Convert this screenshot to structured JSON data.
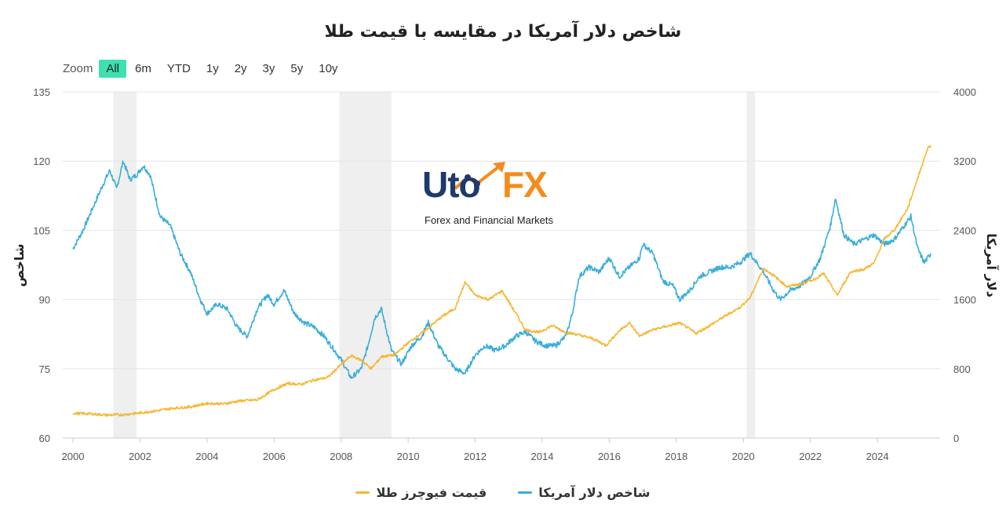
{
  "title": "شاخص دلار آمریکا در مقایسه با قیمت طلا",
  "range_selector": {
    "zoom_label": "Zoom",
    "buttons": [
      "All",
      "6m",
      "YTD",
      "1y",
      "2y",
      "3y",
      "5y",
      "10y"
    ],
    "active": "All"
  },
  "logo": {
    "part1": "Uto",
    "part2": "FX",
    "subtitle": "Forex and Financial Markets"
  },
  "colors": {
    "dxy": "#3aaed8",
    "gold": "#f5b731",
    "grid": "#e6e6e6",
    "recession": "#efefef"
  },
  "chart_data": {
    "type": "line",
    "title": "شاخص دلار آمریکا در مقایسه با قیمت طلا",
    "xlabel": "",
    "x_ticks": [
      "2000",
      "2002",
      "2004",
      "2006",
      "2008",
      "2010",
      "2012",
      "2014",
      "2016",
      "2018",
      "2020",
      "2022",
      "2024"
    ],
    "left_axis": {
      "label": "شاخص",
      "range": [
        60,
        135
      ],
      "ticks": [
        "60",
        "75",
        "90",
        "105",
        "120",
        "135"
      ]
    },
    "right_axis": {
      "label": "دلار آمریکا",
      "range": [
        0,
        4000
      ],
      "ticks": [
        "0",
        "800",
        "1600",
        "2400",
        "3200",
        "4000"
      ]
    },
    "shaded_periods": [
      [
        2001.2,
        2001.9
      ],
      [
        2007.95,
        2009.5
      ],
      [
        2020.1,
        2020.35
      ]
    ],
    "grid": true,
    "legend_position": "bottom",
    "series": [
      {
        "name": "شاخص دلار آمریکا",
        "axis": "left",
        "x": [
          2000.0,
          2000.3,
          2000.6,
          2000.9,
          2001.1,
          2001.3,
          2001.5,
          2001.7,
          2001.9,
          2002.1,
          2002.3,
          2002.6,
          2002.9,
          2003.2,
          2003.5,
          2003.8,
          2004.0,
          2004.3,
          2004.6,
          2004.9,
          2005.2,
          2005.5,
          2005.8,
          2006.0,
          2006.3,
          2006.6,
          2006.9,
          2007.2,
          2007.5,
          2007.8,
          2008.0,
          2008.3,
          2008.6,
          2008.8,
          2009.0,
          2009.2,
          2009.5,
          2009.8,
          2010.1,
          2010.4,
          2010.6,
          2010.9,
          2011.2,
          2011.4,
          2011.7,
          2012.0,
          2012.3,
          2012.6,
          2012.9,
          2013.2,
          2013.5,
          2013.8,
          2014.1,
          2014.4,
          2014.7,
          2014.9,
          2015.1,
          2015.4,
          2015.7,
          2016.0,
          2016.3,
          2016.6,
          2016.9,
          2017.0,
          2017.3,
          2017.6,
          2017.9,
          2018.1,
          2018.4,
          2018.7,
          2019.0,
          2019.3,
          2019.6,
          2019.9,
          2020.2,
          2020.3,
          2020.6,
          2020.9,
          2021.1,
          2021.4,
          2021.7,
          2022.0,
          2022.3,
          2022.6,
          2022.75,
          2023.0,
          2023.3,
          2023.6,
          2023.9,
          2024.2,
          2024.5,
          2024.8,
          2025.0,
          2025.2,
          2025.4,
          2025.6
        ],
        "values": [
          101,
          105,
          110,
          115,
          118,
          114,
          120,
          116,
          117,
          119,
          117,
          108,
          106,
          100,
          96,
          90,
          87,
          89,
          88,
          84,
          82,
          88,
          91,
          89,
          92,
          87,
          85,
          84,
          82,
          79,
          77,
          73,
          75,
          80,
          86,
          88,
          79,
          76,
          80,
          82,
          85,
          80,
          77,
          75,
          74,
          78,
          80,
          79,
          80,
          82,
          83,
          81,
          80,
          80,
          82,
          87,
          95,
          97,
          96,
          99,
          95,
          97,
          99,
          102,
          100,
          94,
          93,
          90,
          92,
          95,
          96,
          97,
          97,
          98,
          100,
          99,
          96,
          92,
          90,
          92,
          93,
          95,
          99,
          106,
          112,
          104,
          102,
          103,
          104,
          102,
          103,
          106,
          108,
          101,
          98,
          100
        ]
      },
      {
        "name": "قیمت فیوچرز طلا",
        "axis": "right",
        "x": [
          2000.0,
          2000.5,
          2001.0,
          2001.5,
          2002.0,
          2002.5,
          2003.0,
          2003.5,
          2004.0,
          2004.5,
          2005.0,
          2005.5,
          2006.0,
          2006.4,
          2006.8,
          2007.2,
          2007.6,
          2008.0,
          2008.3,
          2008.6,
          2008.9,
          2009.2,
          2009.6,
          2010.0,
          2010.5,
          2011.0,
          2011.4,
          2011.7,
          2012.0,
          2012.4,
          2012.8,
          2013.2,
          2013.5,
          2013.9,
          2014.3,
          2014.7,
          2015.0,
          2015.5,
          2015.9,
          2016.3,
          2016.6,
          2016.9,
          2017.3,
          2017.7,
          2018.1,
          2018.6,
          2019.0,
          2019.5,
          2019.9,
          2020.2,
          2020.6,
          2020.9,
          2021.3,
          2021.7,
          2022.1,
          2022.4,
          2022.8,
          2023.2,
          2023.6,
          2023.9,
          2024.2,
          2024.5,
          2024.9,
          2025.2,
          2025.5,
          2025.6
        ],
        "values": [
          285,
          280,
          265,
          270,
          290,
          315,
          345,
          360,
          400,
          395,
          430,
          440,
          560,
          630,
          620,
          670,
          700,
          850,
          950,
          900,
          800,
          940,
          960,
          1100,
          1240,
          1400,
          1500,
          1800,
          1650,
          1600,
          1700,
          1450,
          1250,
          1220,
          1300,
          1220,
          1200,
          1150,
          1070,
          1240,
          1330,
          1180,
          1250,
          1290,
          1330,
          1210,
          1300,
          1420,
          1510,
          1620,
          1960,
          1880,
          1750,
          1780,
          1830,
          1900,
          1650,
          1920,
          1950,
          2020,
          2300,
          2400,
          2650,
          3000,
          3350,
          3380
        ]
      }
    ]
  },
  "legend": {
    "dxy_label": "شاخص دلار آمریکا",
    "gold_label": "قیمت فیوچرز طلا"
  }
}
